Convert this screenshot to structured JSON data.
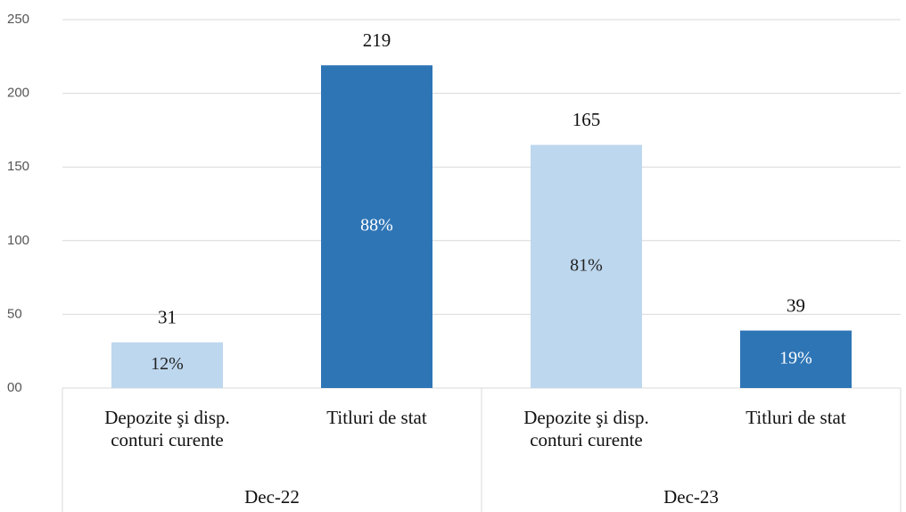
{
  "chart_data": {
    "type": "bar",
    "categories": [
      "Depozite şi disp. conturi curente",
      "Titluri de stat",
      "Depozite şi disp. conturi curente",
      "Titluri de stat"
    ],
    "groups": [
      "Dec-22",
      "Dec-23"
    ],
    "values": [
      31,
      219,
      165,
      39
    ],
    "share_labels": [
      "12%",
      "88%",
      "81%",
      "19%"
    ],
    "colors": [
      "#bdd7ee",
      "#2e75b6",
      "#bdd7ee",
      "#2e75b6"
    ],
    "ylim": [
      0,
      250
    ],
    "yticks": [
      {
        "value": 0,
        "label": "00"
      },
      50,
      100,
      150,
      200,
      250
    ],
    "grid": true
  }
}
